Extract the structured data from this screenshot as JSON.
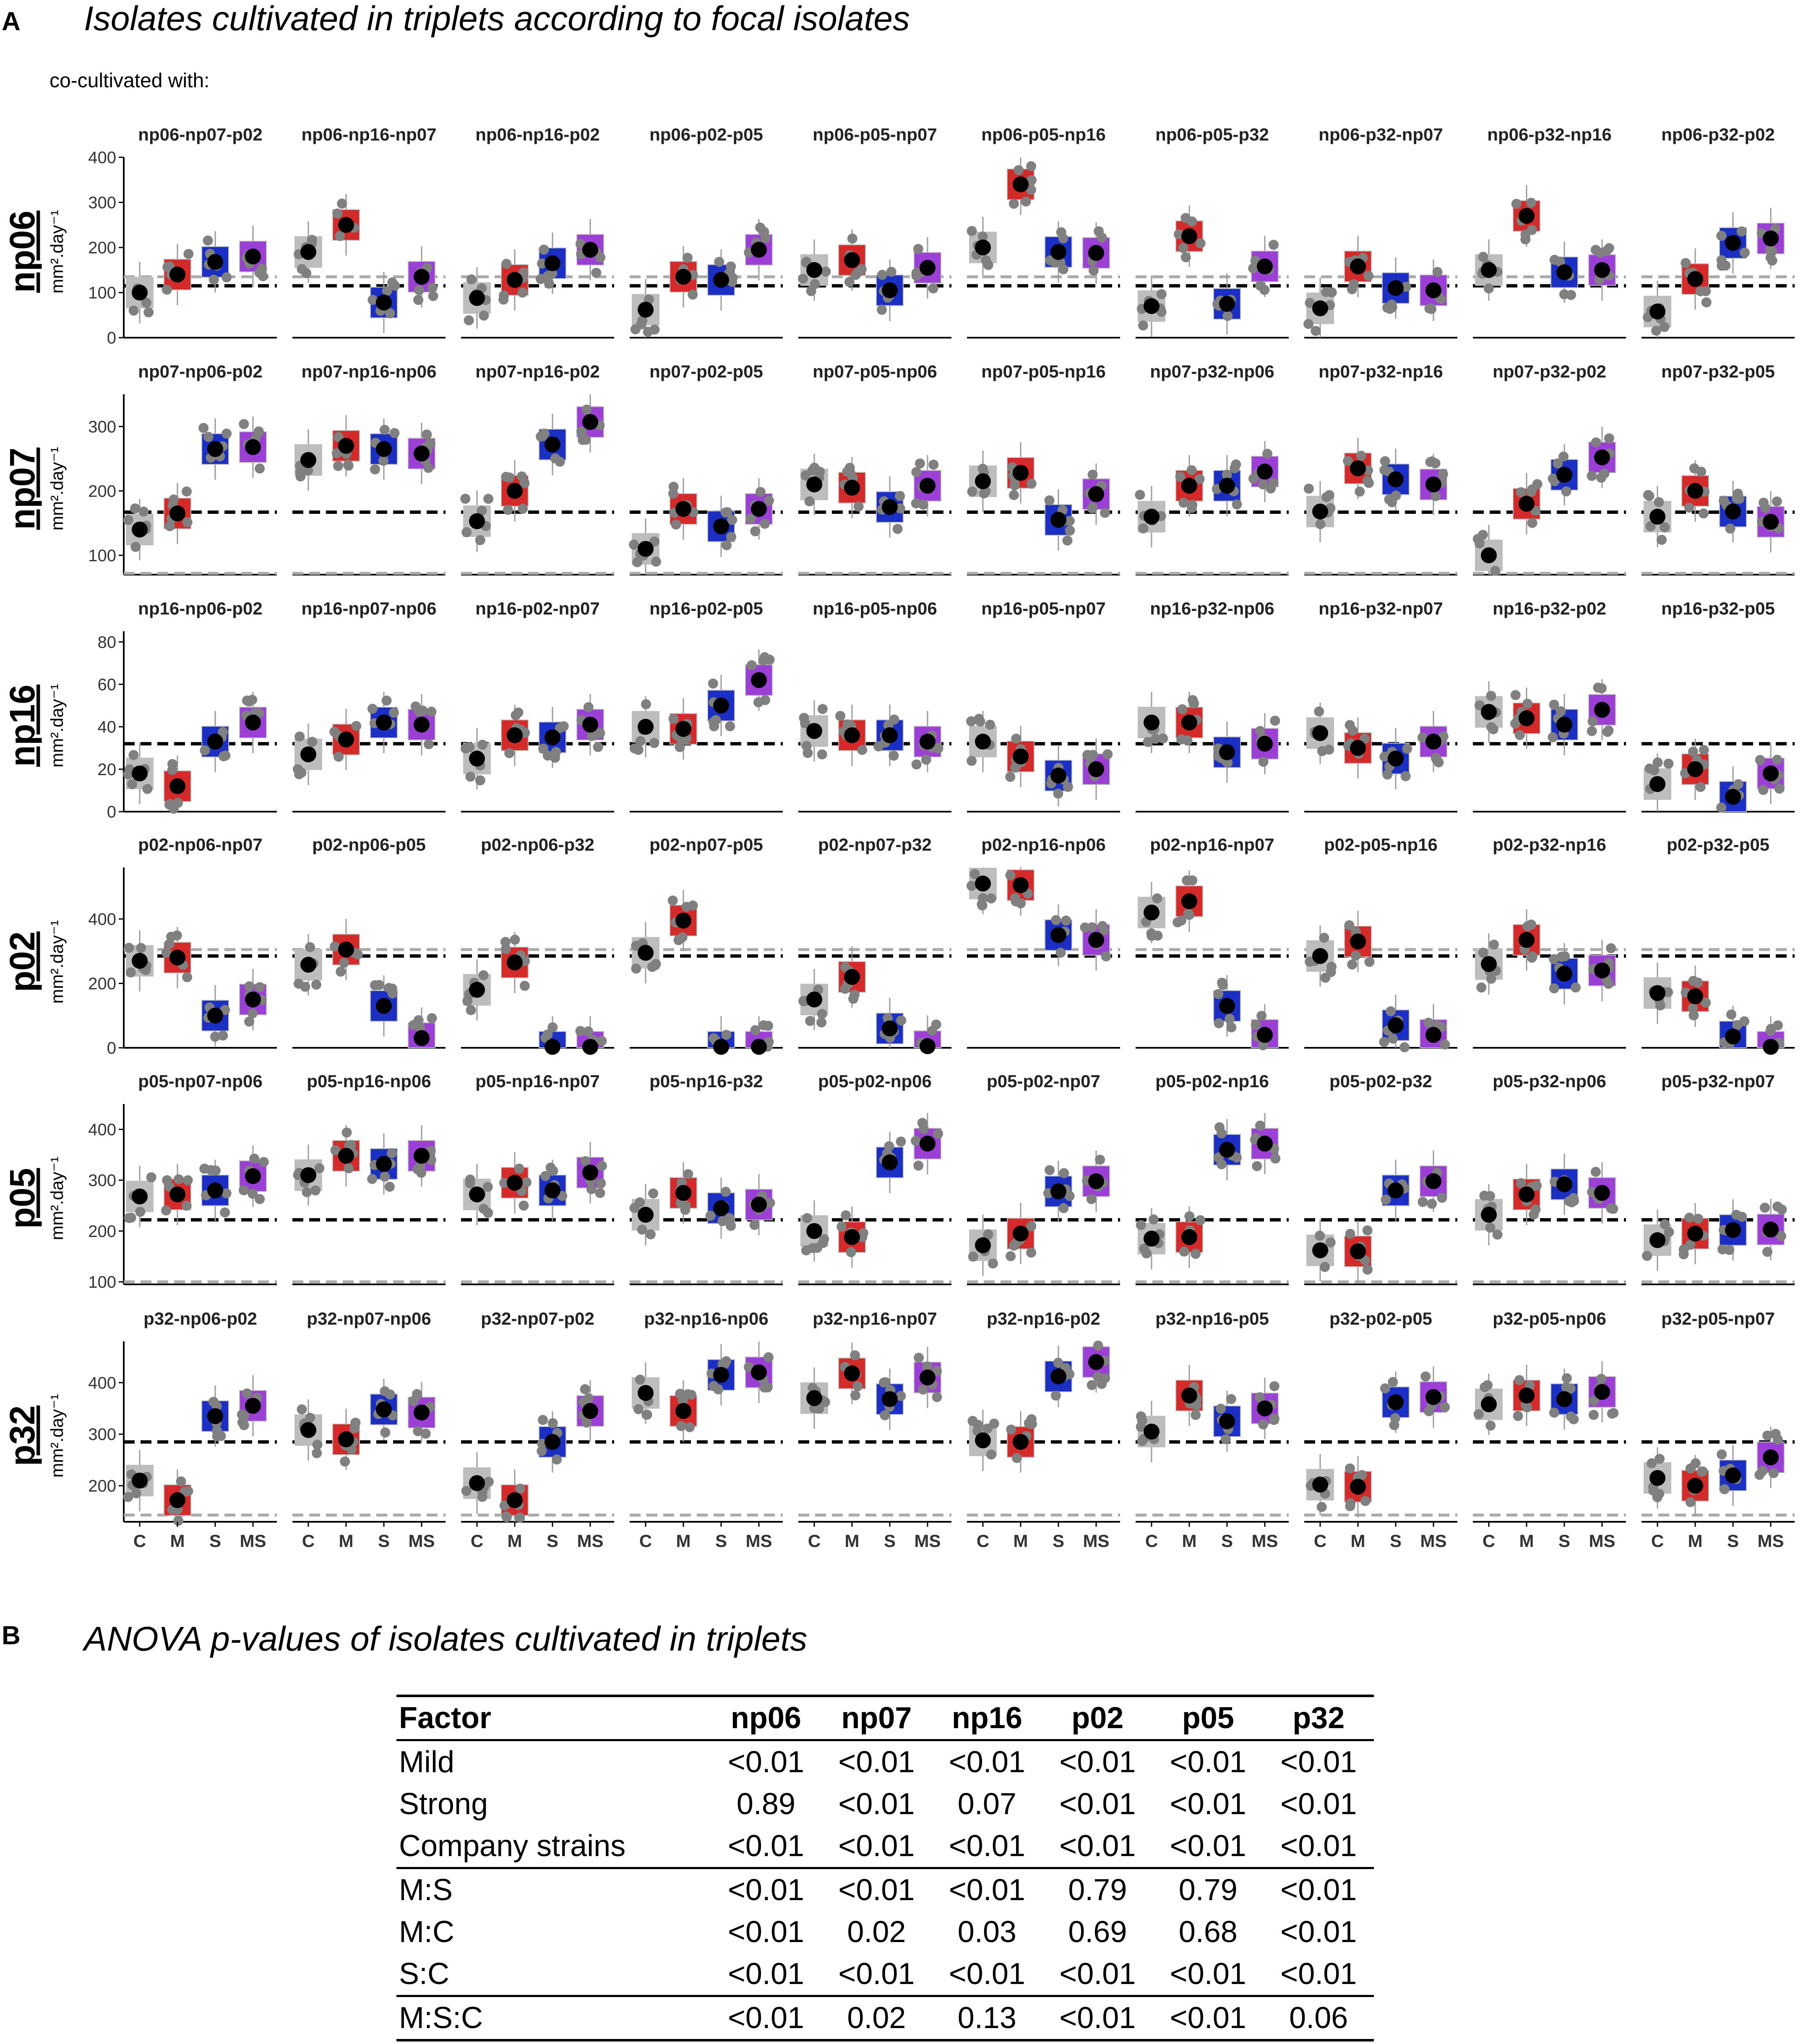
{
  "panel_a": {
    "letter": "A",
    "title": "Isolates cultivated in triplets according to focal isolates",
    "subtitle": "co-cultivated with:",
    "row_ylabel": "mm².day⁻¹",
    "xcategories": [
      "C",
      "M",
      "S",
      "MS"
    ]
  },
  "panel_b": {
    "letter": "B",
    "title": "ANOVA p-values of isolates cultivated in triplets",
    "headers": [
      "Factor",
      "np06",
      "np07",
      "np16",
      "p02",
      "p05",
      "p32"
    ],
    "rows": [
      [
        "Mild",
        "<0.01",
        "<0.01",
        "<0.01",
        "<0.01",
        "<0.01",
        "<0.01"
      ],
      [
        "Strong",
        "0.89",
        "<0.01",
        "0.07",
        "<0.01",
        "<0.01",
        "<0.01"
      ],
      [
        "Company strains",
        "<0.01",
        "<0.01",
        "<0.01",
        "<0.01",
        "<0.01",
        "<0.01"
      ],
      [
        "M:S",
        "<0.01",
        "<0.01",
        "<0.01",
        "0.79",
        "0.79",
        "<0.01"
      ],
      [
        "M:C",
        "<0.01",
        "0.02",
        "0.03",
        "0.69",
        "0.68",
        "<0.01"
      ],
      [
        "S:C",
        "<0.01",
        "<0.01",
        "<0.01",
        "<0.01",
        "<0.01",
        "<0.01"
      ],
      [
        "M:S:C",
        "<0.01",
        "0.02",
        "0.13",
        "<0.01",
        "<0.01",
        "0.06"
      ]
    ]
  },
  "colors": {
    "C": "#bdbdbd",
    "M": "#d42a2a",
    "S": "#1c2fc4",
    "MS": "#9b3fd6",
    "black_dashed_line": "#000000",
    "grey_dashed_line": "#aaaaaa",
    "points": "#808080"
  },
  "chart_data": [
    {
      "type": "box",
      "focal_isolate": "np06",
      "ylim": [
        0,
        400
      ],
      "yticks": [
        0,
        100,
        200,
        300,
        400
      ],
      "black_dashed": 115,
      "grey_dashed": 135,
      "categories": [
        "C",
        "M",
        "S",
        "MS"
      ],
      "facets": [
        {
          "title": "np06-np07-p02",
          "values": [
            100,
            140,
            168,
            180
          ]
        },
        {
          "title": "np06-np16-np07",
          "values": [
            190,
            250,
            78,
            135
          ]
        },
        {
          "title": "np06-np16-p02",
          "values": [
            88,
            128,
            165,
            195
          ]
        },
        {
          "title": "np06-p02-p05",
          "values": [
            62,
            135,
            128,
            195
          ]
        },
        {
          "title": "np06-p05-np07",
          "values": [
            150,
            172,
            105,
            155
          ]
        },
        {
          "title": "np06-p05-np16",
          "values": [
            200,
            340,
            190,
            188
          ]
        },
        {
          "title": "np06-p05-p32",
          "values": [
            70,
            225,
            75,
            158
          ]
        },
        {
          "title": "np06-p32-np07",
          "values": [
            65,
            158,
            110,
            105
          ]
        },
        {
          "title": "np06-p32-np16",
          "values": [
            150,
            270,
            145,
            150
          ]
        },
        {
          "title": "np06-p32-p02",
          "values": [
            58,
            130,
            210,
            220
          ]
        }
      ]
    },
    {
      "type": "box",
      "focal_isolate": "np07",
      "ylim": [
        70,
        350
      ],
      "yticks": [
        100,
        200,
        300
      ],
      "black_dashed": 167,
      "grey_dashed": 72,
      "categories": [
        "C",
        "M",
        "S",
        "MS"
      ],
      "facets": [
        {
          "title": "np07-np06-p02",
          "values": [
            140,
            165,
            265,
            268
          ]
        },
        {
          "title": "np07-np16-np06",
          "values": [
            248,
            270,
            265,
            258
          ]
        },
        {
          "title": "np07-np16-p02",
          "values": [
            153,
            200,
            272,
            307
          ]
        },
        {
          "title": "np07-p02-p05",
          "values": [
            110,
            172,
            145,
            172
          ]
        },
        {
          "title": "np07-p05-np06",
          "values": [
            210,
            205,
            175,
            208
          ]
        },
        {
          "title": "np07-p05-np16",
          "values": [
            215,
            228,
            155,
            195
          ]
        },
        {
          "title": "np07-p32-np06",
          "values": [
            160,
            208,
            208,
            230
          ]
        },
        {
          "title": "np07-p32-np16",
          "values": [
            168,
            235,
            218,
            210
          ]
        },
        {
          "title": "np07-p32-p02",
          "values": [
            100,
            180,
            225,
            252
          ]
        },
        {
          "title": "np07-p32-p05",
          "values": [
            160,
            200,
            168,
            152
          ]
        }
      ]
    },
    {
      "type": "box",
      "focal_isolate": "np16",
      "ylim": [
        0,
        85
      ],
      "yticks": [
        0,
        20,
        40,
        60,
        80
      ],
      "black_dashed": 32,
      "grey_dashed": 32,
      "categories": [
        "C",
        "M",
        "S",
        "MS"
      ],
      "facets": [
        {
          "title": "np16-np06-p02",
          "values": [
            18,
            12,
            33,
            42
          ]
        },
        {
          "title": "np16-np07-np06",
          "values": [
            27,
            34,
            42,
            41
          ]
        },
        {
          "title": "np16-p02-np07",
          "values": [
            25,
            36,
            35,
            41
          ]
        },
        {
          "title": "np16-p02-p05",
          "values": [
            40,
            39,
            50,
            62
          ]
        },
        {
          "title": "np16-p05-np06",
          "values": [
            38,
            36,
            36,
            33
          ]
        },
        {
          "title": "np16-p05-np07",
          "values": [
            33,
            26,
            17,
            20
          ]
        },
        {
          "title": "np16-p32-np06",
          "values": [
            42,
            42,
            28,
            32
          ]
        },
        {
          "title": "np16-p32-np07",
          "values": [
            37,
            30,
            25,
            33
          ]
        },
        {
          "title": "np16-p32-p02",
          "values": [
            47,
            44,
            41,
            48
          ]
        },
        {
          "title": "np16-p32-p05",
          "values": [
            13,
            20,
            7,
            18
          ]
        }
      ]
    },
    {
      "type": "box",
      "focal_isolate": "p02",
      "ylim": [
        0,
        560
      ],
      "yticks": [
        0,
        200,
        400
      ],
      "black_dashed": 285,
      "grey_dashed": 305,
      "categories": [
        "C",
        "M",
        "S",
        "MS"
      ],
      "facets": [
        {
          "title": "p02-np06-np07",
          "values": [
            270,
            280,
            100,
            150
          ]
        },
        {
          "title": "p02-np06-p05",
          "values": [
            258,
            305,
            130,
            30
          ]
        },
        {
          "title": "p02-np06-p32",
          "values": [
            180,
            265,
            3,
            3
          ]
        },
        {
          "title": "p02-np07-p05",
          "values": [
            295,
            395,
            3,
            3
          ]
        },
        {
          "title": "p02-np07-p32",
          "values": [
            150,
            220,
            60,
            5
          ]
        },
        {
          "title": "p02-np16-np06",
          "values": [
            510,
            505,
            350,
            335
          ]
        },
        {
          "title": "p02-np16-np07",
          "values": [
            420,
            455,
            130,
            40
          ]
        },
        {
          "title": "p02-p05-np16",
          "values": [
            285,
            330,
            70,
            40
          ]
        },
        {
          "title": "p02-p32-np16",
          "values": [
            260,
            335,
            230,
            240
          ]
        },
        {
          "title": "p02-p32-p05",
          "values": [
            170,
            160,
            35,
            3
          ]
        }
      ]
    },
    {
      "type": "box",
      "focal_isolate": "p05",
      "ylim": [
        95,
        450
      ],
      "yticks": [
        100,
        200,
        300,
        400
      ],
      "black_dashed": 222,
      "grey_dashed": 100,
      "categories": [
        "C",
        "M",
        "S",
        "MS"
      ],
      "facets": [
        {
          "title": "p05-np07-np06",
          "values": [
            268,
            272,
            280,
            308
          ]
        },
        {
          "title": "p05-np16-np06",
          "values": [
            310,
            348,
            332,
            348
          ]
        },
        {
          "title": "p05-np16-np07",
          "values": [
            272,
            295,
            280,
            315
          ]
        },
        {
          "title": "p05-np16-p32",
          "values": [
            232,
            275,
            245,
            252
          ]
        },
        {
          "title": "p05-p02-np06",
          "values": [
            200,
            188,
            335,
            372
          ]
        },
        {
          "title": "p05-p02-np07",
          "values": [
            172,
            195,
            278,
            298
          ]
        },
        {
          "title": "p05-p02-np16",
          "values": [
            185,
            188,
            360,
            372
          ]
        },
        {
          "title": "p05-p02-p32",
          "values": [
            162,
            160,
            280,
            298
          ]
        },
        {
          "title": "p05-p32-np06",
          "values": [
            232,
            272,
            292,
            275
          ]
        },
        {
          "title": "p05-p32-np07",
          "values": [
            182,
            195,
            202,
            203
          ]
        }
      ]
    },
    {
      "type": "box",
      "focal_isolate": "p32",
      "ylim": [
        130,
        480
      ],
      "yticks": [
        200,
        300,
        400
      ],
      "black_dashed": 285,
      "grey_dashed": 143,
      "categories": [
        "C",
        "M",
        "S",
        "MS"
      ],
      "facets": [
        {
          "title": "p32-np06-p02",
          "values": [
            210,
            172,
            335,
            355
          ]
        },
        {
          "title": "p32-np07-np06",
          "values": [
            308,
            290,
            348,
            342
          ]
        },
        {
          "title": "p32-np07-p02",
          "values": [
            205,
            172,
            285,
            345
          ]
        },
        {
          "title": "p32-np16-np06",
          "values": [
            380,
            345,
            415,
            420
          ]
        },
        {
          "title": "p32-np16-np07",
          "values": [
            370,
            418,
            368,
            410
          ]
        },
        {
          "title": "p32-np16-p02",
          "values": [
            288,
            285,
            412,
            440
          ]
        },
        {
          "title": "p32-np16-p05",
          "values": [
            305,
            375,
            325,
            350
          ]
        },
        {
          "title": "p32-p02-p05",
          "values": [
            202,
            198,
            362,
            372
          ]
        },
        {
          "title": "p32-p05-np06",
          "values": [
            358,
            375,
            368,
            382
          ]
        },
        {
          "title": "p32-p05-np07",
          "values": [
            215,
            200,
            220,
            255
          ]
        }
      ]
    }
  ]
}
